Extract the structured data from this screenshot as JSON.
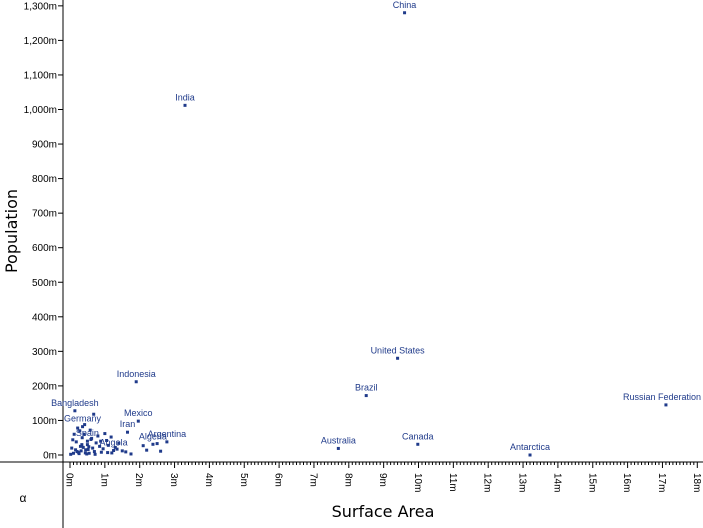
{
  "chart_data": {
    "type": "scatter",
    "xlabel": "Surface Area",
    "ylabel": "Population",
    "corner_label": "α",
    "xlim": [
      0,
      18
    ],
    "ylim": [
      0,
      1300
    ],
    "x_unit": "million km²",
    "y_unit": "million",
    "x_ticks": [
      "0m",
      "1m",
      "2m",
      "3m",
      "4m",
      "5m",
      "6m",
      "7m",
      "8m",
      "9m",
      "10m",
      "11m",
      "12m",
      "13m",
      "14m",
      "15m",
      "16m",
      "17m",
      "18m"
    ],
    "y_ticks": [
      "0m",
      "100m",
      "200m",
      "300m",
      "400m",
      "500m",
      "600m",
      "700m",
      "800m",
      "900m",
      "1,000m",
      "1,100m",
      "1,200m",
      "1,300m"
    ],
    "point_color": "#1f3a8a",
    "labeled_points": [
      {
        "label": "China",
        "x": 9.6,
        "y": 1280
      },
      {
        "label": "India",
        "x": 3.3,
        "y": 1012
      },
      {
        "label": "United States",
        "x": 9.4,
        "y": 280
      },
      {
        "label": "Indonesia",
        "x": 1.9,
        "y": 212
      },
      {
        "label": "Brazil",
        "x": 8.5,
        "y": 172
      },
      {
        "label": "Russian Federation",
        "x": 17.1,
        "y": 145
      },
      {
        "label": "Bangladesh",
        "x": 0.14,
        "y": 128
      },
      {
        "label": "Germany",
        "x": 0.36,
        "y": 82
      },
      {
        "label": "Mexico",
        "x": 1.96,
        "y": 98
      },
      {
        "label": "Iran",
        "x": 1.65,
        "y": 66
      },
      {
        "label": "Spain",
        "x": 0.5,
        "y": 40
      },
      {
        "label": "Argentina",
        "x": 2.78,
        "y": 38
      },
      {
        "label": "Angola",
        "x": 1.25,
        "y": 13
      },
      {
        "label": "Algeria",
        "x": 2.38,
        "y": 31
      },
      {
        "label": "Australia",
        "x": 7.7,
        "y": 19
      },
      {
        "label": "Canada",
        "x": 9.98,
        "y": 31
      },
      {
        "label": "Antarctica",
        "x": 13.2,
        "y": 0
      }
    ],
    "other_points": [
      [
        0.05,
        20
      ],
      [
        0.1,
        5
      ],
      [
        0.2,
        10
      ],
      [
        0.3,
        25
      ],
      [
        0.35,
        50
      ],
      [
        0.4,
        60
      ],
      [
        0.45,
        15
      ],
      [
        0.5,
        30
      ],
      [
        0.55,
        5
      ],
      [
        0.6,
        45
      ],
      [
        0.65,
        20
      ],
      [
        0.7,
        10
      ],
      [
        0.75,
        35
      ],
      [
        0.8,
        55
      ],
      [
        0.85,
        25
      ],
      [
        0.9,
        8
      ],
      [
        0.95,
        18
      ],
      [
        1.0,
        62
      ],
      [
        1.05,
        42
      ],
      [
        1.1,
        28
      ],
      [
        1.2,
        6
      ],
      [
        1.3,
        22
      ],
      [
        1.4,
        34
      ],
      [
        1.5,
        12
      ],
      [
        1.6,
        9
      ],
      [
        1.75,
        3
      ],
      [
        2.1,
        27
      ],
      [
        2.2,
        14
      ],
      [
        2.5,
        33
      ],
      [
        2.6,
        11
      ],
      [
        0.12,
        60
      ],
      [
        0.22,
        78
      ],
      [
        0.28,
        70
      ],
      [
        0.42,
        88
      ],
      [
        0.58,
        72
      ],
      [
        0.68,
        118
      ],
      [
        0.18,
        38
      ],
      [
        0.32,
        12
      ],
      [
        0.48,
        3
      ],
      [
        0.62,
        48
      ],
      [
        0.08,
        44
      ],
      [
        0.26,
        4
      ],
      [
        0.38,
        22
      ],
      [
        0.52,
        16
      ],
      [
        0.72,
        2
      ],
      [
        0.88,
        40
      ],
      [
        1.08,
        7
      ],
      [
        1.18,
        52
      ],
      [
        1.35,
        17
      ],
      [
        0.02,
        2
      ],
      [
        0.16,
        15
      ],
      [
        0.24,
        8
      ],
      [
        0.34,
        30
      ],
      [
        0.44,
        6
      ],
      [
        0.54,
        24
      ]
    ]
  }
}
